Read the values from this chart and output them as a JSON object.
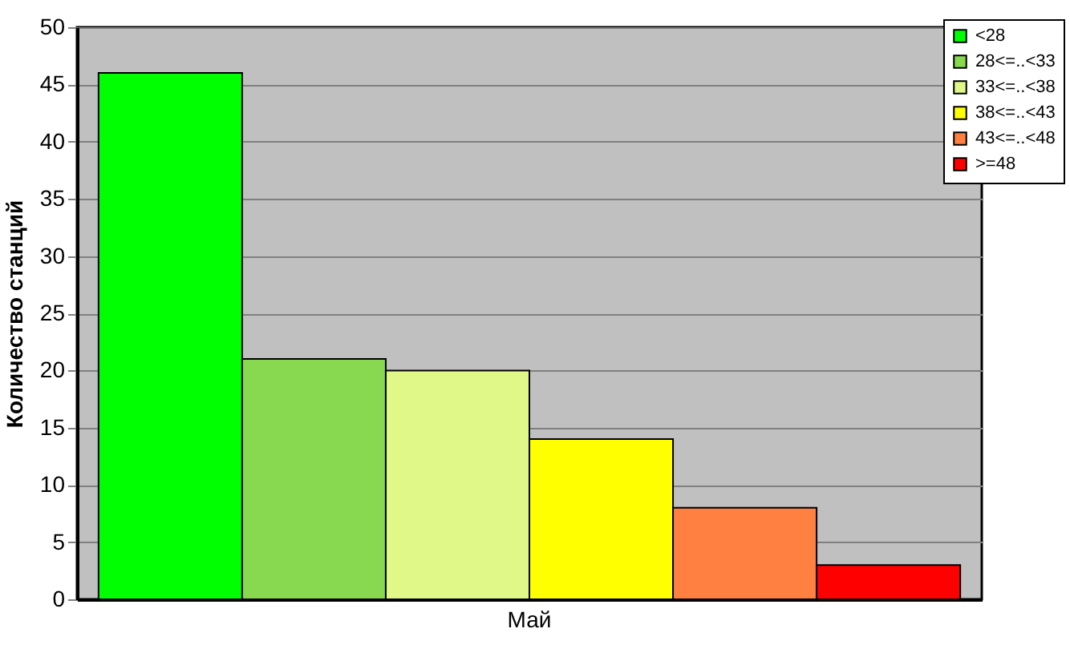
{
  "chart_data": {
    "type": "bar",
    "ylabel": "Количество станций",
    "categories": [
      "Май"
    ],
    "series": [
      {
        "name": "<28",
        "color": "#00ff00",
        "values": [
          46
        ]
      },
      {
        "name": "28<=..<33",
        "color": "#88d850",
        "values": [
          21
        ]
      },
      {
        "name": "33<=..<38",
        "color": "#e0f888",
        "values": [
          20
        ]
      },
      {
        "name": "38<=..<43",
        "color": "#ffff00",
        "values": [
          14
        ]
      },
      {
        "name": "43<=..<48",
        "color": "#ff8040",
        "values": [
          8
        ]
      },
      {
        "name": ">=48",
        "color": "#ff0000",
        "values": [
          3
        ]
      }
    ],
    "ylim": [
      0,
      50
    ],
    "yticks": [
      0,
      5,
      10,
      15,
      20,
      25,
      30,
      35,
      40,
      45,
      50
    ],
    "grid": "y",
    "legend": "top right"
  }
}
